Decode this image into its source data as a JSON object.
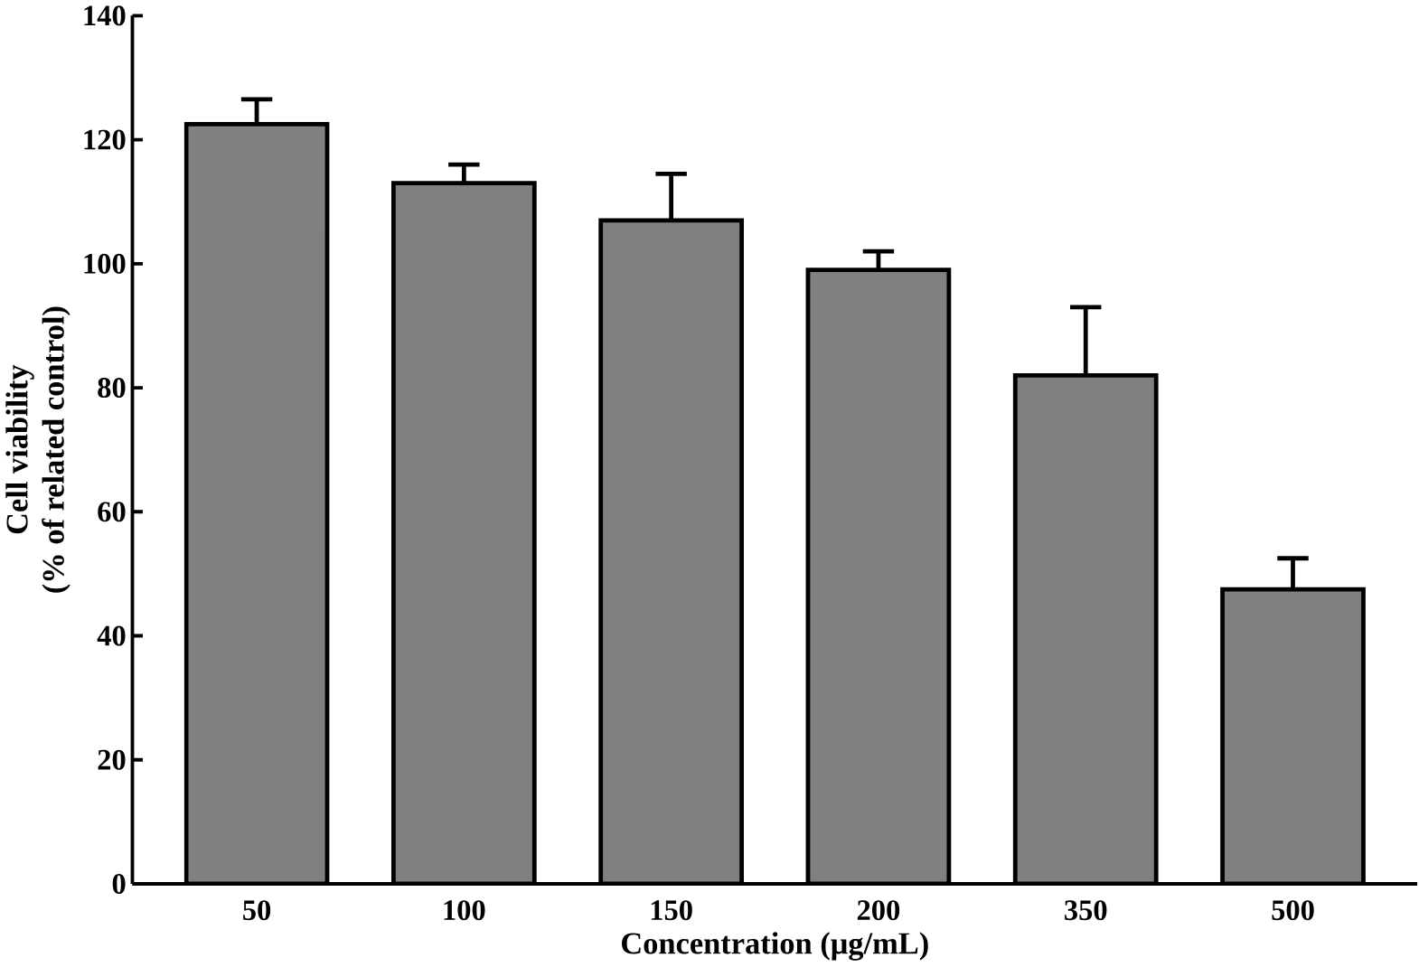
{
  "chart_data": {
    "type": "bar",
    "xlabel": "Concentration (μg/mL)",
    "ylabel": "Cell viability\n(% of related control)",
    "categories": [
      "50",
      "100",
      "150",
      "200",
      "350",
      "500"
    ],
    "values": [
      122.5,
      113,
      107,
      99,
      82,
      47.5
    ],
    "errors": [
      4,
      3,
      7.5,
      3,
      11,
      5
    ],
    "color": "#808080",
    "ylim": [
      0,
      140
    ],
    "yticks": [
      0,
      20,
      40,
      60,
      80,
      100,
      120,
      140
    ],
    "grid": false
  }
}
